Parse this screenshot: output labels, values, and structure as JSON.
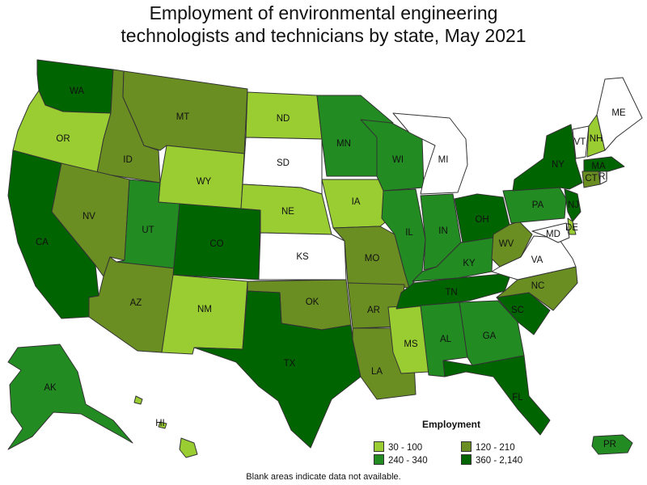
{
  "title": {
    "line1": "Employment of environmental engineering",
    "line2": "technologists and technicians by state, May 2021"
  },
  "legend": {
    "title": "Employment",
    "items": [
      {
        "label": "30 - 100",
        "color": "#9ACD32"
      },
      {
        "label": "120 - 210",
        "color": "#6B8E23"
      },
      {
        "label": "240 - 340",
        "color": "#228B22"
      },
      {
        "label": "360 - 2,140",
        "color": "#006400"
      }
    ]
  },
  "footnote": "Blank areas indicate data not available.",
  "states": [
    {
      "abbr": "WA",
      "bin": 3
    },
    {
      "abbr": "OR",
      "bin": 0
    },
    {
      "abbr": "CA",
      "bin": 3
    },
    {
      "abbr": "ID",
      "bin": 1
    },
    {
      "abbr": "NV",
      "bin": 1
    },
    {
      "abbr": "MT",
      "bin": 1
    },
    {
      "abbr": "WY",
      "bin": 0
    },
    {
      "abbr": "UT",
      "bin": 2
    },
    {
      "abbr": "AZ",
      "bin": 1
    },
    {
      "abbr": "CO",
      "bin": 3
    },
    {
      "abbr": "NM",
      "bin": 0
    },
    {
      "abbr": "ND",
      "bin": 0
    },
    {
      "abbr": "SD",
      "bin": null
    },
    {
      "abbr": "NE",
      "bin": 0
    },
    {
      "abbr": "KS",
      "bin": null
    },
    {
      "abbr": "OK",
      "bin": 1
    },
    {
      "abbr": "TX",
      "bin": 3
    },
    {
      "abbr": "MN",
      "bin": 2
    },
    {
      "abbr": "IA",
      "bin": 0
    },
    {
      "abbr": "MO",
      "bin": 1
    },
    {
      "abbr": "AR",
      "bin": 1
    },
    {
      "abbr": "LA",
      "bin": 1
    },
    {
      "abbr": "WI",
      "bin": 2
    },
    {
      "abbr": "IL",
      "bin": 2
    },
    {
      "abbr": "MS",
      "bin": 0
    },
    {
      "abbr": "MI",
      "bin": null
    },
    {
      "abbr": "IN",
      "bin": 2
    },
    {
      "abbr": "KY",
      "bin": 2
    },
    {
      "abbr": "TN",
      "bin": 3
    },
    {
      "abbr": "AL",
      "bin": 2
    },
    {
      "abbr": "OH",
      "bin": 3
    },
    {
      "abbr": "GA",
      "bin": 2
    },
    {
      "abbr": "FL",
      "bin": 3
    },
    {
      "abbr": "SC",
      "bin": 3
    },
    {
      "abbr": "NC",
      "bin": 1
    },
    {
      "abbr": "WV",
      "bin": 1
    },
    {
      "abbr": "VA",
      "bin": null
    },
    {
      "abbr": "PA",
      "bin": 2
    },
    {
      "abbr": "NY",
      "bin": 3
    },
    {
      "abbr": "VT",
      "bin": null
    },
    {
      "abbr": "NH",
      "bin": 0
    },
    {
      "abbr": "ME",
      "bin": null
    },
    {
      "abbr": "MA",
      "bin": 3
    },
    {
      "abbr": "CT",
      "bin": 1
    },
    {
      "abbr": "RI",
      "bin": null
    },
    {
      "abbr": "NJ",
      "bin": 3
    },
    {
      "abbr": "DE",
      "bin": 0
    },
    {
      "abbr": "MD",
      "bin": null
    },
    {
      "abbr": "AK",
      "bin": 2
    },
    {
      "abbr": "HI",
      "bin": 0
    },
    {
      "abbr": "PR",
      "bin": 2
    }
  ]
}
